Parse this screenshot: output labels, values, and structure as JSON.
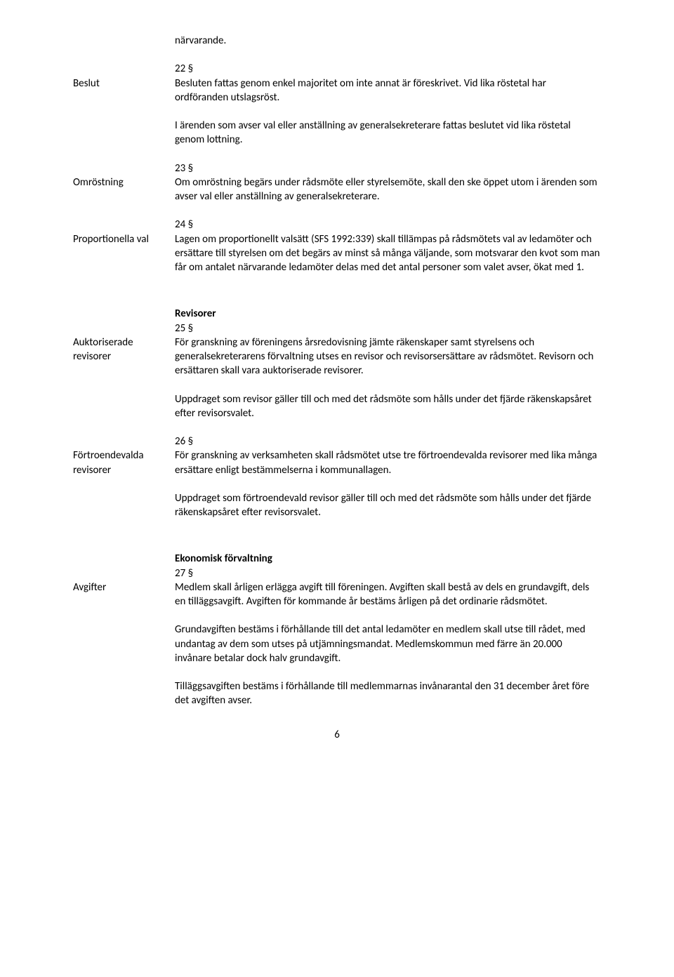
{
  "top_word": "närvarande.",
  "s22": {
    "label": "Beslut",
    "num": "22 §",
    "p1": "Besluten fattas genom enkel majoritet om inte annat är föreskrivet. Vid lika röstetal har ordföranden utslagsröst.",
    "p2": "I ärenden som avser val eller anställning av generalsekreterare fattas beslutet vid lika röstetal genom lottning."
  },
  "s23": {
    "label": "Omröstning",
    "num": "23 §",
    "p1": "Om omröstning begärs under rådsmöte eller styrelsemöte, skall den ske öppet utom i ärenden som avser val eller anställning av generalsekreterare."
  },
  "s24": {
    "label": "Proportionella val",
    "num": "24 §",
    "p1": "Lagen om proportionellt valsätt (SFS 1992:339) skall tillämpas på rådsmötets val av ledamöter och ersättare till styrelsen om det begärs av minst så många väljande, som motsvarar den kvot som man får om antalet närvarande ledamöter delas med det antal personer som valet avser, ökat med 1."
  },
  "s25": {
    "heading": "Revisorer",
    "label1": "Auktoriserade",
    "label2": "revisorer",
    "num": "25 §",
    "p1": "För granskning av föreningens årsredovisning jämte räkenskaper samt styrelsens och generalsekreterarens förvaltning utses en revisor och revisorsersättare av rådsmötet. Revisorn och ersättaren skall vara auktoriserade revisorer.",
    "p2": "Uppdraget som revisor gäller till och med det rådsmöte som hålls under det fjärde räkenskapsåret efter revisorsvalet."
  },
  "s26": {
    "label1": "Förtroendevalda",
    "label2": "revisorer",
    "num": "26 §",
    "p1": "För granskning av verksamheten skall rådsmötet utse tre förtroendevalda revisorer med lika många ersättare enligt bestämmelserna i kommunallagen.",
    "p2": "Uppdraget som förtroendevald revisor gäller till och med det rådsmöte som hålls under det fjärde räkenskapsåret efter revisorsvalet."
  },
  "s27": {
    "heading": "Ekonomisk förvaltning",
    "label": "Avgifter",
    "num": "27 §",
    "p1": "Medlem skall årligen erlägga avgift till föreningen. Avgiften skall bestå av dels en grundavgift, dels en tilläggsavgift. Avgiften för kommande år bestäms årligen på det ordinarie rådsmötet.",
    "p2": "Grundavgiften bestäms i förhållande till det antal ledamöter en medlem skall utse till rådet, med undantag av dem som utses på utjämningsmandat. Medlemskommun med färre än 20.000 invånare betalar dock halv grundavgift.",
    "p3": "Tilläggsavgiften bestäms i förhållande till medlemmarnas invånarantal den 31 december året före det avgiften avser."
  },
  "page_number": "6"
}
